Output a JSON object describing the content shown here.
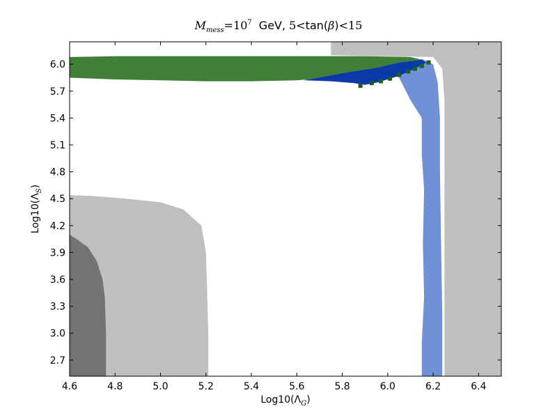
{
  "chart_data": {
    "type": "scatter",
    "title": {
      "m": "M",
      "m_sub": "mess",
      "eq": "=10",
      "eq_exp": "7",
      "gev": "GeV,",
      "five": "5",
      "lt1": "<",
      "tan": "tan(",
      "beta": "β",
      "close": ")",
      "lt2": "<",
      "fifteen": "15"
    },
    "xlabel": {
      "prefix": "Log10(Λ",
      "sub": "G",
      "suffix": ")"
    },
    "ylabel": {
      "prefix": "Log10(Λ",
      "sub": "S",
      "suffix": ")"
    },
    "xlim": [
      4.6,
      6.5
    ],
    "ylim": [
      2.52,
      6.25
    ],
    "x_ticks": [
      "4.6",
      "4.8",
      "5.0",
      "5.2",
      "5.4",
      "5.6",
      "5.8",
      "6.0",
      "6.2",
      "6.4"
    ],
    "y_ticks": [
      "2.7",
      "3.0",
      "3.3",
      "3.6",
      "3.9",
      "4.2",
      "4.5",
      "4.8",
      "5.1",
      "5.4",
      "5.7",
      "6.0"
    ],
    "grid": false,
    "colors": {
      "excluded_gray": "#bfbfbf",
      "dark_gray": "#737373",
      "light_blue": "#7090d8",
      "dark_blue": "#0a3aa8",
      "green": "#3f7f36",
      "dark_green": "#1f5f1c"
    },
    "regions": [
      {
        "name": "excluded-right",
        "color": "excluded_gray",
        "points": [
          [
            6.25,
            2.52
          ],
          [
            6.5,
            2.52
          ],
          [
            6.5,
            6.25
          ],
          [
            5.75,
            6.25
          ],
          [
            5.75,
            6.1
          ],
          [
            6.2,
            6.08
          ],
          [
            6.24,
            5.95
          ],
          [
            6.25,
            5.6
          ]
        ]
      },
      {
        "name": "excluded-lower-left",
        "color": "excluded_gray",
        "points": [
          [
            4.6,
            2.52
          ],
          [
            5.21,
            2.52
          ],
          [
            5.21,
            3.0
          ],
          [
            5.205,
            3.5
          ],
          [
            5.2,
            3.9
          ],
          [
            5.18,
            4.2
          ],
          [
            5.1,
            4.38
          ],
          [
            5.0,
            4.46
          ],
          [
            4.85,
            4.5
          ],
          [
            4.7,
            4.53
          ],
          [
            4.6,
            4.54
          ]
        ]
      },
      {
        "name": "dark-gray-region",
        "color": "dark_gray",
        "points": [
          [
            4.6,
            2.52
          ],
          [
            4.76,
            2.52
          ],
          [
            4.76,
            3.0
          ],
          [
            4.755,
            3.4
          ],
          [
            4.745,
            3.6
          ],
          [
            4.72,
            3.8
          ],
          [
            4.68,
            3.96
          ],
          [
            4.63,
            4.05
          ],
          [
            4.6,
            4.1
          ]
        ]
      },
      {
        "name": "light-blue-band",
        "color": "light_blue",
        "points": [
          [
            6.15,
            2.52
          ],
          [
            6.24,
            2.52
          ],
          [
            6.24,
            3.2
          ],
          [
            6.235,
            4.0
          ],
          [
            6.23,
            4.8
          ],
          [
            6.23,
            5.4
          ],
          [
            6.22,
            5.8
          ],
          [
            6.2,
            6.0
          ],
          [
            6.15,
            6.06
          ],
          [
            6.08,
            5.95
          ],
          [
            6.05,
            5.85
          ],
          [
            6.1,
            5.6
          ],
          [
            6.15,
            5.4
          ],
          [
            6.15,
            5.0
          ],
          [
            6.16,
            4.6
          ],
          [
            6.155,
            4.0
          ],
          [
            6.16,
            3.4
          ],
          [
            6.15,
            2.9
          ]
        ]
      },
      {
        "name": "green-band",
        "color": "green",
        "points": [
          [
            4.6,
            5.85
          ],
          [
            4.8,
            5.83
          ],
          [
            5.0,
            5.82
          ],
          [
            5.2,
            5.81
          ],
          [
            5.4,
            5.81
          ],
          [
            5.6,
            5.82
          ],
          [
            5.65,
            5.83
          ],
          [
            5.8,
            5.9
          ],
          [
            5.95,
            5.96
          ],
          [
            6.05,
            6.02
          ],
          [
            6.15,
            6.05
          ],
          [
            6.1,
            6.08
          ],
          [
            5.9,
            6.09
          ],
          [
            5.6,
            6.09
          ],
          [
            5.2,
            6.09
          ],
          [
            4.8,
            6.09
          ],
          [
            4.6,
            6.08
          ]
        ]
      },
      {
        "name": "dark-blue-band",
        "color": "dark_blue",
        "points": [
          [
            5.63,
            5.82
          ],
          [
            5.75,
            5.81
          ],
          [
            5.85,
            5.79
          ],
          [
            5.9,
            5.77
          ],
          [
            5.96,
            5.8
          ],
          [
            6.05,
            5.87
          ],
          [
            6.12,
            5.95
          ],
          [
            6.17,
            6.02
          ],
          [
            6.15,
            6.05
          ],
          [
            6.05,
            6.02
          ],
          [
            5.95,
            5.96
          ],
          [
            5.8,
            5.9
          ],
          [
            5.65,
            5.83
          ]
        ]
      }
    ],
    "dark_green_points": [
      [
        5.88,
        5.76
      ],
      [
        5.93,
        5.79
      ],
      [
        5.97,
        5.81
      ],
      [
        6.01,
        5.84
      ],
      [
        6.05,
        5.88
      ],
      [
        6.09,
        5.92
      ],
      [
        6.12,
        5.95
      ],
      [
        6.15,
        5.98
      ],
      [
        6.18,
        6.02
      ]
    ]
  }
}
